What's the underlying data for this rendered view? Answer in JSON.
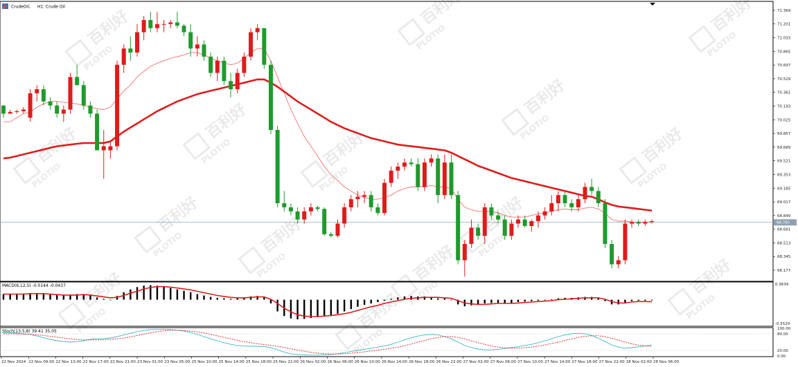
{
  "header": {
    "symbol": "CrudeOil,",
    "timeframe": "H1:",
    "description": "Crude Oil"
  },
  "price_panel": {
    "current_price_label": "68.765",
    "y_ticks": [
      "71.369",
      "71.201",
      "71.033",
      "70.865",
      "70.697",
      "70.529",
      "70.361",
      "70.193",
      "70.025",
      "69.857",
      "69.689",
      "69.521",
      "69.353",
      "69.185",
      "69.017",
      "68.849",
      "68.681",
      "68.513",
      "68.345",
      "68.177"
    ]
  },
  "macd_panel": {
    "label": "MACD(6,12,5) -0.0144 -0.0437",
    "top_tick": "0.3639",
    "bottom_tick": "-0.5520"
  },
  "stoch_panel": {
    "label": "Stoch(13,5,8) 39.41 35.05",
    "ticks": [
      "100.00",
      "80.00",
      "20.00",
      "0.00"
    ]
  },
  "x_ticks": [
    "22 Nov 2024",
    "22 Nov 09:00",
    "22 Nov 13:00",
    "22 Nov 17:00",
    "22 Nov 21:00",
    "23 Nov 01:00",
    "23 Nov 05:00",
    "25 Nov 10:00",
    "25 Nov 14:00",
    "25 Nov 18:00",
    "25 Nov 22:00",
    "26 Nov 02:00",
    "26 Nov 06:00",
    "26 Nov 10:00",
    "26 Nov 14:00",
    "26 Nov 18:00",
    "26 Nov 22:00",
    "27 Nov 02:00",
    "27 Nov 06:00",
    "27 Nov 10:00",
    "27 Nov 14:00",
    "27 Nov 18:00",
    "27 Nov 22:00",
    "28 Nov 02:00",
    "28 Nov 06:00"
  ],
  "watermark": {
    "text": "百利好",
    "logo_text": "PLOTIO"
  },
  "colors": {
    "up": "#e01b1b",
    "down": "#1f9a2c",
    "ma_slow": "#e01b1b",
    "ma_fast": "#f07070",
    "price_line": "#8da0b0",
    "macd_hist": "#000000",
    "macd_signal": "#e01b1b",
    "stoch_main": "#3ab7c8",
    "stoch_signal": "#e01b1b"
  },
  "chart_data": [
    {
      "type": "candlestick",
      "series_name": "CrudeOil H1",
      "ylim": [
        68.05,
        71.47
      ],
      "candles": [
        [
          70.2,
          70.2,
          70.05,
          70.1
        ],
        [
          70.1,
          70.15,
          70.1,
          70.12
        ],
        [
          70.12,
          70.15,
          70.1,
          70.13
        ],
        [
          70.13,
          70.18,
          70.1,
          70.15
        ],
        [
          70.05,
          70.4,
          70.0,
          70.35
        ],
        [
          70.35,
          70.45,
          70.25,
          70.4
        ],
        [
          70.4,
          70.45,
          70.2,
          70.25
        ],
        [
          70.25,
          70.3,
          70.15,
          70.2
        ],
        [
          70.2,
          70.25,
          70.05,
          70.1
        ],
        [
          70.1,
          70.2,
          70.0,
          70.15
        ],
        [
          70.15,
          70.6,
          70.1,
          70.55
        ],
        [
          70.55,
          70.7,
          70.45,
          70.45
        ],
        [
          70.45,
          70.5,
          70.15,
          70.2
        ],
        [
          70.2,
          70.25,
          70.05,
          70.1
        ],
        [
          70.1,
          70.15,
          69.65,
          69.65
        ],
        [
          69.65,
          69.9,
          69.3,
          69.7
        ],
        [
          69.65,
          69.75,
          69.55,
          69.7
        ],
        [
          69.7,
          70.75,
          69.65,
          70.7
        ],
        [
          70.7,
          70.95,
          70.6,
          70.9
        ],
        [
          70.9,
          71.05,
          70.75,
          70.85
        ],
        [
          70.85,
          71.2,
          70.8,
          71.1
        ],
        [
          71.1,
          71.3,
          71.0,
          71.25
        ],
        [
          71.25,
          71.35,
          71.1,
          71.15
        ],
        [
          71.15,
          71.35,
          71.1,
          71.2
        ],
        [
          71.2,
          71.25,
          71.1,
          71.2
        ],
        [
          71.2,
          71.25,
          71.15,
          71.22
        ],
        [
          71.22,
          71.35,
          71.15,
          71.18
        ],
        [
          71.18,
          71.2,
          71.05,
          71.1
        ],
        [
          71.1,
          71.2,
          70.8,
          70.9
        ],
        [
          70.9,
          71.05,
          70.8,
          70.95
        ],
        [
          70.95,
          71.0,
          70.75,
          70.8
        ],
        [
          70.8,
          70.85,
          70.55,
          70.6
        ],
        [
          70.6,
          70.8,
          70.5,
          70.75
        ],
        [
          70.75,
          70.8,
          70.45,
          70.5
        ],
        [
          70.5,
          70.6,
          70.3,
          70.4
        ],
        [
          70.4,
          70.65,
          70.35,
          70.6
        ],
        [
          70.6,
          70.85,
          70.55,
          70.8
        ],
        [
          70.8,
          71.15,
          70.75,
          71.1
        ],
        [
          71.1,
          71.2,
          71.0,
          71.15
        ],
        [
          71.15,
          71.15,
          70.65,
          70.7
        ],
        [
          70.7,
          70.75,
          69.85,
          69.9
        ],
        [
          69.9,
          69.95,
          68.95,
          69.0
        ],
        [
          69.0,
          69.15,
          68.9,
          68.95
        ],
        [
          68.95,
          69.0,
          68.85,
          68.9
        ],
        [
          68.9,
          68.95,
          68.75,
          68.8
        ],
        [
          68.8,
          68.95,
          68.75,
          68.9
        ],
        [
          68.9,
          69.0,
          68.85,
          68.95
        ],
        [
          68.95,
          68.97,
          68.9,
          68.93
        ],
        [
          68.93,
          68.95,
          68.6,
          68.62
        ],
        [
          68.62,
          68.65,
          68.58,
          68.6
        ],
        [
          68.6,
          68.8,
          68.58,
          68.75
        ],
        [
          68.75,
          69.0,
          68.7,
          68.95
        ],
        [
          68.95,
          69.1,
          68.9,
          69.05
        ],
        [
          69.05,
          69.15,
          68.95,
          69.08
        ],
        [
          69.08,
          69.15,
          69.0,
          69.1
        ],
        [
          69.1,
          69.15,
          68.9,
          68.95
        ],
        [
          68.95,
          69.0,
          68.85,
          68.88
        ],
        [
          68.88,
          69.3,
          68.85,
          69.25
        ],
        [
          69.25,
          69.45,
          69.2,
          69.4
        ],
        [
          69.4,
          69.5,
          69.3,
          69.45
        ],
        [
          69.45,
          69.55,
          69.4,
          69.5
        ],
        [
          69.5,
          69.55,
          69.45,
          69.48
        ],
        [
          69.48,
          69.55,
          69.15,
          69.2
        ],
        [
          69.2,
          69.55,
          69.15,
          69.5
        ],
        [
          69.5,
          69.6,
          69.45,
          69.55
        ],
        [
          69.55,
          69.6,
          69.0,
          69.1
        ],
        [
          69.1,
          69.6,
          69.05,
          69.5
        ],
        [
          69.5,
          69.6,
          69.05,
          69.1
        ],
        [
          69.1,
          69.15,
          68.25,
          68.3
        ],
        [
          68.3,
          68.55,
          68.1,
          68.5
        ],
        [
          68.5,
          68.8,
          68.45,
          68.7
        ],
        [
          68.7,
          68.75,
          68.55,
          68.6
        ],
        [
          68.6,
          69.0,
          68.5,
          68.95
        ],
        [
          68.95,
          69.0,
          68.8,
          68.85
        ],
        [
          68.85,
          68.9,
          68.75,
          68.8
        ],
        [
          68.8,
          68.85,
          68.55,
          68.6
        ],
        [
          68.6,
          68.8,
          68.55,
          68.75
        ],
        [
          68.75,
          68.85,
          68.7,
          68.8
        ],
        [
          68.8,
          68.85,
          68.7,
          68.72
        ],
        [
          68.72,
          68.8,
          68.65,
          68.78
        ],
        [
          68.78,
          68.9,
          68.7,
          68.85
        ],
        [
          68.85,
          68.95,
          68.8,
          68.9
        ],
        [
          68.9,
          69.1,
          68.85,
          69.0
        ],
        [
          69.0,
          69.15,
          68.9,
          69.1
        ],
        [
          69.1,
          69.15,
          68.95,
          69.0
        ],
        [
          69.0,
          69.05,
          68.9,
          68.95
        ],
        [
          68.95,
          69.1,
          68.9,
          69.05
        ],
        [
          69.05,
          69.25,
          69.0,
          69.2
        ],
        [
          69.2,
          69.3,
          69.1,
          69.15
        ],
        [
          69.15,
          69.2,
          68.95,
          69.0
        ],
        [
          69.0,
          69.05,
          68.45,
          68.5
        ],
        [
          68.5,
          68.55,
          68.2,
          68.25
        ],
        [
          68.25,
          68.35,
          68.2,
          68.3
        ],
        [
          68.3,
          68.8,
          68.25,
          68.75
        ],
        [
          68.75,
          68.8,
          68.7,
          68.77
        ],
        [
          68.77,
          68.8,
          68.72,
          68.75
        ],
        [
          68.75,
          68.8,
          68.72,
          68.77
        ],
        [
          68.77,
          68.8,
          68.75,
          68.78
        ]
      ],
      "ma_fast": [
        70.0,
        70.0,
        70.05,
        70.1,
        70.12,
        70.18,
        70.22,
        70.25,
        70.25,
        70.24,
        70.23,
        70.22,
        70.2,
        70.18,
        70.16,
        70.15,
        70.18,
        70.28,
        70.38,
        70.45,
        70.55,
        70.62,
        70.68,
        70.72,
        70.75,
        70.78,
        70.8,
        70.82,
        70.85,
        70.85,
        70.82,
        70.78,
        70.75,
        70.72,
        70.7,
        70.72,
        70.78,
        70.85,
        70.9,
        70.9,
        70.75,
        70.55,
        70.35,
        70.15,
        69.98,
        69.82,
        69.7,
        69.58,
        69.45,
        69.35,
        69.28,
        69.2,
        69.15,
        69.1,
        69.07,
        69.05,
        69.05,
        69.07,
        69.1,
        69.15,
        69.18,
        69.2,
        69.2,
        69.2,
        69.22,
        69.2,
        69.2,
        69.18,
        69.05,
        68.95,
        68.92,
        68.9,
        68.9,
        68.9,
        68.88,
        68.85,
        68.83,
        68.83,
        68.83,
        68.85,
        68.87,
        68.88,
        68.9,
        68.92,
        68.93,
        68.92,
        68.92,
        68.94,
        68.95,
        68.93,
        68.88,
        68.8,
        68.78,
        68.78,
        68.77,
        68.77,
        68.77,
        68.77
      ],
      "ma_slow": [
        69.55,
        69.56,
        69.58,
        69.6,
        69.62,
        69.64,
        69.66,
        69.68,
        69.7,
        69.71,
        69.72,
        69.73,
        69.74,
        69.74,
        69.74,
        69.74,
        69.76,
        69.82,
        69.88,
        69.93,
        69.98,
        70.03,
        70.08,
        70.13,
        70.17,
        70.21,
        70.25,
        70.28,
        70.31,
        70.34,
        70.36,
        70.38,
        70.4,
        70.42,
        70.44,
        70.46,
        70.48,
        70.5,
        70.52,
        70.52,
        70.48,
        70.43,
        70.37,
        70.31,
        70.25,
        70.2,
        70.15,
        70.1,
        70.05,
        70.0,
        69.96,
        69.92,
        69.89,
        69.86,
        69.83,
        69.8,
        69.78,
        69.76,
        69.74,
        69.72,
        69.71,
        69.7,
        69.69,
        69.68,
        69.67,
        69.66,
        69.65,
        69.62,
        69.58,
        69.54,
        69.5,
        69.46,
        69.43,
        69.4,
        69.37,
        69.34,
        69.31,
        69.29,
        69.27,
        69.25,
        69.23,
        69.21,
        69.19,
        69.17,
        69.15,
        69.13,
        69.11,
        69.09,
        69.08,
        69.05,
        69.01,
        68.98,
        68.96,
        68.95,
        68.94,
        68.93,
        68.92,
        68.91
      ]
    },
    {
      "type": "bar",
      "series_name": "MACD(6,12,5)",
      "ylim": [
        -0.552,
        0.3639
      ],
      "histogram": [
        0.12,
        0.12,
        0.13,
        0.13,
        0.14,
        0.13,
        0.12,
        0.11,
        0.1,
        0.09,
        0.1,
        0.12,
        0.11,
        0.09,
        0.05,
        0.02,
        0.0,
        0.08,
        0.16,
        0.22,
        0.27,
        0.3,
        0.31,
        0.3,
        0.28,
        0.25,
        0.22,
        0.19,
        0.16,
        0.12,
        0.09,
        0.06,
        0.04,
        0.03,
        0.02,
        0.03,
        0.05,
        0.07,
        0.08,
        0.06,
        -0.08,
        -0.25,
        -0.35,
        -0.4,
        -0.42,
        -0.41,
        -0.39,
        -0.37,
        -0.36,
        -0.34,
        -0.3,
        -0.25,
        -0.2,
        -0.15,
        -0.11,
        -0.08,
        -0.05,
        -0.02,
        0.02,
        0.05,
        0.07,
        0.08,
        0.07,
        0.07,
        0.06,
        0.03,
        0.03,
        0.0,
        -0.1,
        -0.14,
        -0.12,
        -0.1,
        -0.08,
        -0.07,
        -0.07,
        -0.08,
        -0.07,
        -0.05,
        -0.04,
        -0.03,
        -0.02,
        -0.01,
        0.01,
        0.03,
        0.04,
        0.04,
        0.05,
        0.06,
        0.06,
        0.04,
        -0.03,
        -0.1,
        -0.1,
        -0.06,
        -0.03,
        -0.02,
        -0.02,
        -0.015
      ],
      "signal": [
        0.12,
        0.12,
        0.12,
        0.12,
        0.13,
        0.13,
        0.13,
        0.12,
        0.11,
        0.1,
        0.1,
        0.1,
        0.11,
        0.1,
        0.08,
        0.06,
        0.04,
        0.05,
        0.09,
        0.14,
        0.18,
        0.23,
        0.26,
        0.28,
        0.28,
        0.27,
        0.25,
        0.23,
        0.21,
        0.18,
        0.15,
        0.12,
        0.09,
        0.07,
        0.05,
        0.04,
        0.04,
        0.05,
        0.06,
        0.06,
        0.01,
        -0.08,
        -0.18,
        -0.26,
        -0.32,
        -0.35,
        -0.36,
        -0.36,
        -0.35,
        -0.34,
        -0.32,
        -0.3,
        -0.27,
        -0.23,
        -0.19,
        -0.15,
        -0.12,
        -0.08,
        -0.05,
        -0.02,
        0.01,
        0.03,
        0.04,
        0.05,
        0.05,
        0.05,
        0.04,
        0.03,
        -0.02,
        -0.07,
        -0.09,
        -0.1,
        -0.1,
        -0.09,
        -0.08,
        -0.08,
        -0.08,
        -0.07,
        -0.06,
        -0.05,
        -0.04,
        -0.03,
        -0.02,
        0.0,
        0.01,
        0.02,
        0.03,
        0.04,
        0.04,
        0.04,
        0.01,
        -0.04,
        -0.07,
        -0.07,
        -0.05,
        -0.04,
        -0.04,
        -0.044
      ]
    },
    {
      "type": "line",
      "series_name": "Stoch(13,5,8)",
      "ylim": [
        0,
        100
      ],
      "main": [
        85,
        84,
        82,
        80,
        78,
        72,
        66,
        60,
        55,
        52,
        50,
        52,
        55,
        60,
        62,
        63,
        65,
        70,
        76,
        82,
        88,
        92,
        95,
        96,
        96,
        95,
        93,
        90,
        85,
        78,
        70,
        62,
        55,
        48,
        42,
        38,
        36,
        35,
        35,
        34,
        30,
        22,
        14,
        8,
        5,
        4,
        3,
        3,
        4,
        5,
        8,
        12,
        16,
        20,
        24,
        28,
        32,
        36,
        42,
        50,
        58,
        66,
        72,
        76,
        78,
        76,
        70,
        62,
        50,
        38,
        30,
        25,
        22,
        22,
        24,
        27,
        30,
        34,
        38,
        42,
        48,
        55,
        62,
        70,
        76,
        80,
        82,
        80,
        74,
        64,
        52,
        40,
        32,
        28,
        30,
        33,
        36,
        39.41
      ],
      "signal": [
        80,
        80,
        80,
        79,
        78,
        76,
        74,
        71,
        68,
        65,
        62,
        60,
        58,
        58,
        58,
        59,
        60,
        62,
        65,
        69,
        74,
        79,
        84,
        88,
        91,
        93,
        93,
        92,
        90,
        87,
        83,
        78,
        73,
        67,
        62,
        57,
        52,
        48,
        44,
        41,
        38,
        35,
        31,
        26,
        21,
        17,
        13,
        10,
        8,
        7,
        7,
        8,
        10,
        12,
        15,
        18,
        21,
        24,
        28,
        32,
        37,
        43,
        50,
        56,
        62,
        67,
        70,
        70,
        67,
        62,
        55,
        48,
        42,
        36,
        32,
        29,
        28,
        28,
        30,
        32,
        36,
        40,
        45,
        50,
        56,
        62,
        67,
        71,
        73,
        73,
        70,
        64,
        57,
        50,
        44,
        39,
        36,
        35.05
      ]
    }
  ]
}
